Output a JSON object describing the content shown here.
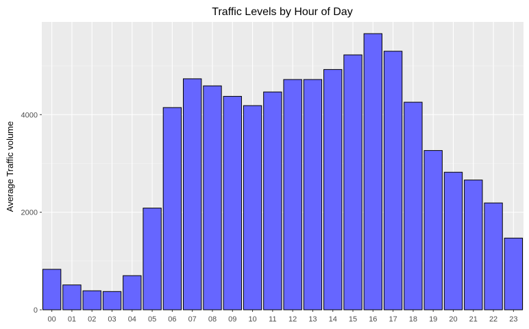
{
  "chart_data": {
    "type": "bar",
    "title": "Traffic Levels by Hour of Day",
    "xlabel": "",
    "ylabel": "Average Traffic volume",
    "categories": [
      "00",
      "01",
      "02",
      "03",
      "04",
      "05",
      "06",
      "07",
      "08",
      "09",
      "10",
      "11",
      "12",
      "13",
      "14",
      "15",
      "16",
      "17",
      "18",
      "19",
      "20",
      "21",
      "22",
      "23"
    ],
    "values": [
      830,
      510,
      390,
      375,
      700,
      2085,
      4145,
      4735,
      4590,
      4375,
      4185,
      4465,
      4720,
      4720,
      4925,
      5225,
      5660,
      5300,
      4255,
      3265,
      2820,
      2660,
      2190,
      1470
    ],
    "ylim": [
      0,
      5900
    ],
    "yticks": [
      0,
      2000,
      4000
    ],
    "grid": true,
    "colors": {
      "bar_fill": "#6666FF",
      "bar_stroke": "#000000",
      "panel_bg": "#EBEBEB",
      "grid_major": "#FFFFFF"
    }
  }
}
